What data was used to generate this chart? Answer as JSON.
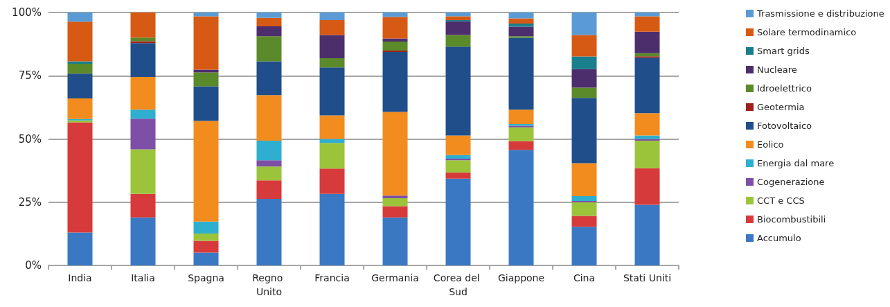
{
  "chart_data": {
    "type": "bar",
    "stacked": true,
    "categories": [
      "India",
      "Italia",
      "Spagna",
      "Regno Unito",
      "Francia",
      "Germania",
      "Corea del Sud",
      "Giappone",
      "Cina",
      "Stati Uniti"
    ],
    "ylim": [
      0,
      100
    ],
    "yticks": [
      {
        "value": 0,
        "label": "0%"
      },
      {
        "value": 25,
        "label": "25%"
      },
      {
        "value": 50,
        "label": "50%"
      },
      {
        "value": 75,
        "label": "75%"
      },
      {
        "value": 100,
        "label": "100%"
      }
    ],
    "grid": "y",
    "legend": "right",
    "series": [
      {
        "name": "Accumulo",
        "color": "#3a78c3",
        "values": [
          13.0,
          19.0,
          5.1,
          26.3,
          28.3,
          19.0,
          34.3,
          45.7,
          15.3,
          24.0
        ]
      },
      {
        "name": "Biocombustibili",
        "color": "#d63a3a",
        "values": [
          43.6,
          9.3,
          4.6,
          7.3,
          10.0,
          4.4,
          2.5,
          3.4,
          4.3,
          14.4
        ]
      },
      {
        "name": "CCT e CCS",
        "color": "#9bc43b",
        "values": [
          0.7,
          17.6,
          2.9,
          5.5,
          10.1,
          3.2,
          4.8,
          5.5,
          5.3,
          10.9
        ]
      },
      {
        "name": "Cogenerazione",
        "color": "#7d4fa6",
        "values": [
          0,
          12.1,
          0,
          2.5,
          0,
          1.0,
          0.6,
          0.6,
          0.6,
          0.7
        ]
      },
      {
        "name": "Energia dal mare",
        "color": "#2fafcf",
        "values": [
          0.6,
          3.6,
          4.7,
          7.7,
          1.6,
          0,
          1.4,
          0.7,
          1.9,
          1.4
        ]
      },
      {
        "name": "Eolico",
        "color": "#f28c1e",
        "values": [
          8.1,
          12.9,
          39.8,
          18.0,
          9.3,
          33.1,
          7.8,
          5.7,
          13.0,
          8.8
        ]
      },
      {
        "name": "Fotovoltaico",
        "color": "#1f4e8a",
        "values": [
          9.8,
          13.4,
          13.7,
          13.4,
          19.0,
          23.7,
          35.1,
          28.4,
          25.8,
          21.9
        ]
      },
      {
        "name": "Geotermia",
        "color": "#a0201c",
        "values": [
          0,
          0.7,
          0,
          0,
          0,
          0.5,
          0,
          0,
          0,
          0.6
        ]
      },
      {
        "name": "Idroelettrico",
        "color": "#5b8a2a",
        "values": [
          3.9,
          1.5,
          5.5,
          9.9,
          3.6,
          3.6,
          4.6,
          0.6,
          4.1,
          1.2
        ]
      },
      {
        "name": "Nucleare",
        "color": "#4d2e6d",
        "values": [
          0,
          0,
          1.1,
          3.9,
          9.2,
          1.2,
          5.4,
          3.8,
          7.3,
          8.5
        ]
      },
      {
        "name": "Smart grids",
        "color": "#1a7f8c",
        "values": [
          1.0,
          0,
          0,
          0,
          0,
          0,
          0.5,
          1.2,
          5.0,
          0
        ]
      },
      {
        "name": "Solare termodinamico",
        "color": "#d65a14",
        "values": [
          15.7,
          9.9,
          21.1,
          3.4,
          5.9,
          8.5,
          1.5,
          2.1,
          8.5,
          6.1
        ]
      },
      {
        "name": "Trasmissione e distribuzione",
        "color": "#5b9bd5",
        "values": [
          3.6,
          0,
          1.5,
          2.1,
          3.0,
          1.8,
          1.5,
          2.3,
          8.9,
          1.5
        ]
      }
    ]
  }
}
